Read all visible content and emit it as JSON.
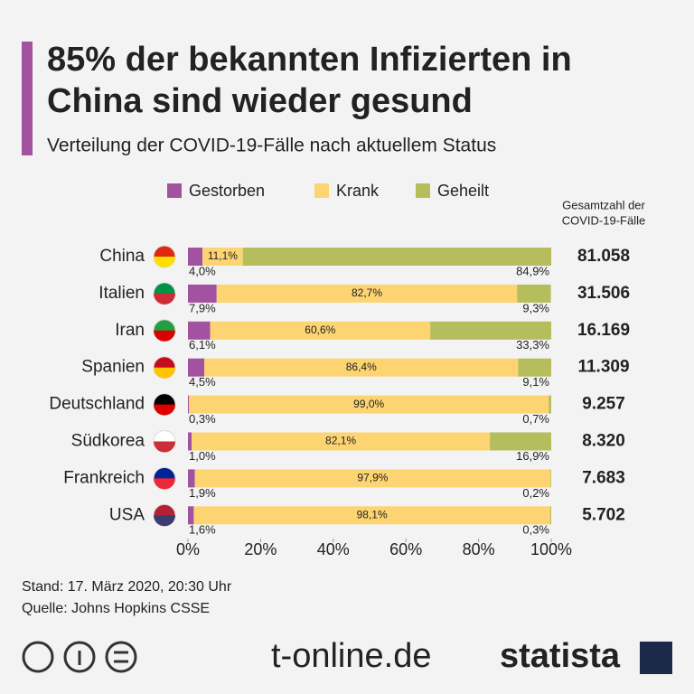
{
  "chart_data": {
    "type": "stacked_barh",
    "title": [
      "85% der bekannten Infizierten in",
      "China sind wieder gesund"
    ],
    "subtitle": "Verteilung der COVID-19-Fälle nach aktuellem Status",
    "categories": [
      "China",
      "Italien",
      "Iran",
      "Spanien",
      "Deutschland",
      "Südkorea",
      "Frankreich",
      "USA"
    ],
    "series": [
      {
        "name": "Gestorben",
        "color": "#a3529f",
        "values": [
          4.0,
          7.9,
          6.1,
          4.5,
          0.3,
          1.0,
          1.9,
          1.6
        ],
        "value_labels": [
          "4,0%",
          "7,9%",
          "6,1%",
          "4,5%",
          "0,3%",
          "1,0%",
          "1,9%",
          "1,6%"
        ]
      },
      {
        "name": "Krank",
        "color": "#fdd472",
        "values": [
          11.1,
          82.7,
          60.6,
          86.4,
          99.0,
          82.1,
          97.9,
          98.1
        ],
        "value_labels": [
          "11,1%",
          "82,7%",
          "60,6%",
          "86,4%",
          "99,0%",
          "82,1%",
          "97,9%",
          "98,1%"
        ]
      },
      {
        "name": "Geheilt",
        "color": "#b6bd5c",
        "values": [
          84.9,
          9.3,
          33.3,
          9.1,
          0.7,
          16.9,
          0.2,
          0.3
        ],
        "value_labels": [
          "84,9%",
          "9,3%",
          "33,3%",
          "9,1%",
          "0,7%",
          "16,9%",
          "0,2%",
          "0,3%"
        ]
      }
    ],
    "totals": {
      "title": [
        "Gesamtzahl der",
        "COVID-19-Fälle"
      ],
      "values": [
        81058,
        31506,
        16169,
        11309,
        9257,
        8320,
        7683,
        5702
      ],
      "value_labels": [
        "81.058",
        "31.506",
        "16.169",
        "11.309",
        "9.257",
        "8.320",
        "7.683",
        "5.702"
      ]
    },
    "xlim": [
      0,
      100
    ],
    "xticks": [
      {
        "value": 0,
        "label": "0%"
      },
      {
        "value": 20,
        "label": "20%"
      },
      {
        "value": 40,
        "label": "40%"
      },
      {
        "value": 60,
        "label": "60%"
      },
      {
        "value": 80,
        "label": "80%"
      },
      {
        "value": 100,
        "label": "100%"
      }
    ],
    "footer": [
      "Stand: 17. März 2020, 20:30 Uhr",
      "Quelle: Johns Hopkins CSSE"
    ],
    "logos": [
      "t-online.de",
      "statista"
    ]
  }
}
